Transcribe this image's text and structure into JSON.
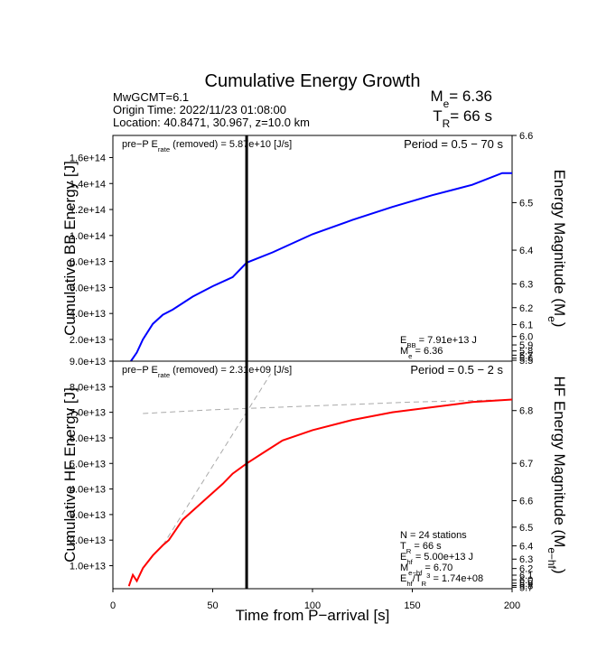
{
  "header": {
    "title": "Cumulative Energy Growth",
    "info": [
      "MwGCMT=6.1",
      "Origin Time: 2022/11/23 01:08:00",
      "Location: 40.8471, 30.967, z=10.0 km"
    ],
    "summary": [
      [
        "M",
        {
          "sub": "e"
        },
        "= 6.36"
      ],
      [
        "T",
        {
          "sub": "R"
        },
        "= 66 s"
      ]
    ]
  },
  "chart_data": [
    {
      "type": "line",
      "ylabel": [
        "Cumulative BB Energy [J]"
      ],
      "y2label": [
        "Energy Magnitude (M",
        {
          "sub": "e"
        },
        ")"
      ],
      "xlim": [
        0,
        200
      ],
      "ylim": [
        3300000000000.0,
        177000000000000.0
      ],
      "yticks": [
        {
          "value": 20000000000000.0,
          "label": "2.0e+13"
        },
        {
          "value": 40000000000000.0,
          "label": "4.0e+13"
        },
        {
          "value": 60000000000000.0,
          "label": "6.0e+13"
        },
        {
          "value": 80000000000000.0,
          "label": "8.0e+13"
        },
        {
          "value": 100000000000000.0,
          "label": "1.0e+14"
        },
        {
          "value": 120000000000000.0,
          "label": "1.2e+14"
        },
        {
          "value": 140000000000000.0,
          "label": "1.4e+14"
        },
        {
          "value": 160000000000000.0,
          "label": "1.6e+14"
        }
      ],
      "y2scale": "energy-magnitude",
      "y2lim": [
        5.45,
        6.6
      ],
      "y2ticks": [
        6.6,
        6.5,
        6.4,
        6.3,
        6.2,
        6.1,
        {
          "value": 6.0,
          "label": "6.0"
        },
        5.9,
        5.8,
        5.7,
        5.6,
        5.5
      ],
      "vline_x": 67,
      "x": [
        9,
        12,
        15,
        20,
        25,
        30,
        40,
        50,
        60,
        67,
        80,
        100,
        120,
        140,
        160,
        180,
        195,
        200
      ],
      "series": [
        {
          "color": "#0000ff",
          "values": [
            3300000000000.0,
            10000000000000.0,
            20000000000000.0,
            32000000000000.0,
            39000000000000.0,
            43000000000000.0,
            53000000000000.0,
            61000000000000.0,
            68000000000000.0,
            79100000000000.0,
            87000000000000.0,
            101000000000000.0,
            112000000000000.0,
            122000000000000.0,
            131000000000000.0,
            139000000000000.0,
            148000000000000.0,
            148000000000000.0
          ]
        }
      ],
      "annotations": {
        "top_left": [
          "pre−P E",
          {
            "sub": "rate"
          },
          " (removed) = 5.87e+10 [J/s]"
        ],
        "top_right": [
          "Period = 0.5 − 70 s"
        ],
        "bottom_right": [
          [
            "E",
            {
              "sub": "BB"
            },
            " = 7.91e+13 J"
          ],
          [
            "M",
            {
              "sub": "e"
            },
            " = 6.36"
          ]
        ]
      }
    },
    {
      "type": "line",
      "ylabel": [
        "Cumulative HF Energy [J]"
      ],
      "y2label": [
        "HF Energy Magnitude (M",
        {
          "sub": "e−hf"
        },
        ")"
      ],
      "xlabel": "Time from P−arrival [s]",
      "xlim": [
        0,
        200
      ],
      "xticks": [
        0,
        50,
        100,
        150,
        200
      ],
      "ylim": [
        1000000000000.0,
        90000000000000.0
      ],
      "yticks": [
        {
          "value": 10000000000000.0,
          "label": "1.0e+13"
        },
        {
          "value": 20000000000000.0,
          "label": "2.0e+13"
        },
        {
          "value": 30000000000000.0,
          "label": "3.0e+13"
        },
        {
          "value": 40000000000000.0,
          "label": "4.0e+13"
        },
        {
          "value": 50000000000000.0,
          "label": "5.0e+13"
        },
        {
          "value": 60000000000000.0,
          "label": "6.0e+13"
        },
        {
          "value": 70000000000000.0,
          "label": "7.0e+13"
        },
        {
          "value": 80000000000000.0,
          "label": "8.0e+13"
        },
        {
          "value": 90000000000000.0,
          "label": "9.0e+13"
        }
      ],
      "y2scale": "energy-magnitude",
      "y2lim": [
        5.57,
        6.87
      ],
      "y2ticks": [
        6.8,
        6.7,
        6.6,
        6.5,
        6.4,
        6.3,
        6.2,
        6.1,
        {
          "value": 6.0,
          "label": "6.0"
        },
        5.9,
        5.8,
        5.7
      ],
      "vline_x": 67,
      "x": [
        8,
        10,
        12,
        15,
        20,
        25,
        28,
        35,
        45,
        55,
        60,
        67,
        75,
        85,
        100,
        120,
        140,
        160,
        180,
        200
      ],
      "series": [
        {
          "color": "#ff0000",
          "values": [
            2000000000000.0,
            6400000000000.0,
            4000000000000.0,
            9000000000000.0,
            14000000000000.0,
            18000000000000.0,
            20000000000000.0,
            28000000000000.0,
            35000000000000.0,
            42000000000000.0,
            46000000000000.0,
            50000000000000.0,
            54000000000000.0,
            59000000000000.0,
            63000000000000.0,
            67000000000000.0,
            70000000000000.0,
            72000000000000.0,
            74000000000000.0,
            75000000000000.0
          ]
        }
      ],
      "fit_lines": [
        {
          "color": "#aaaaaa",
          "x": [
            15,
            50,
            100,
            150,
            200
          ],
          "values": [
            69500000000000.0,
            71000000000000.0,
            72500000000000.0,
            74000000000000.0,
            75000000000000.0
          ]
        },
        {
          "color": "#aaaaaa",
          "x": [
            25,
            79
          ],
          "values": [
            18000000000000.0,
            85000000000000.0
          ]
        }
      ],
      "annotations": {
        "top_left": [
          "pre−P E",
          {
            "sub": "rate"
          },
          " (removed) = 2.31e+09 [J/s]"
        ],
        "top_right": [
          "Period = 0.5 − 2 s"
        ],
        "bottom_right": [
          [
            "N = 24 stations"
          ],
          [
            "T",
            {
              "sub": "R"
            },
            " = 66  s"
          ],
          [
            "E",
            {
              "sub": "hf"
            },
            " = 5.00e+13 J"
          ],
          [
            "M",
            {
              "sub": "e−hf"
            },
            " = 6.70"
          ],
          [
            "E",
            {
              "sub": "hf"
            },
            "/T",
            {
              "sub": "R"
            },
            {
              "sup": "3"
            },
            " =  1.74e+08"
          ]
        ]
      }
    }
  ]
}
